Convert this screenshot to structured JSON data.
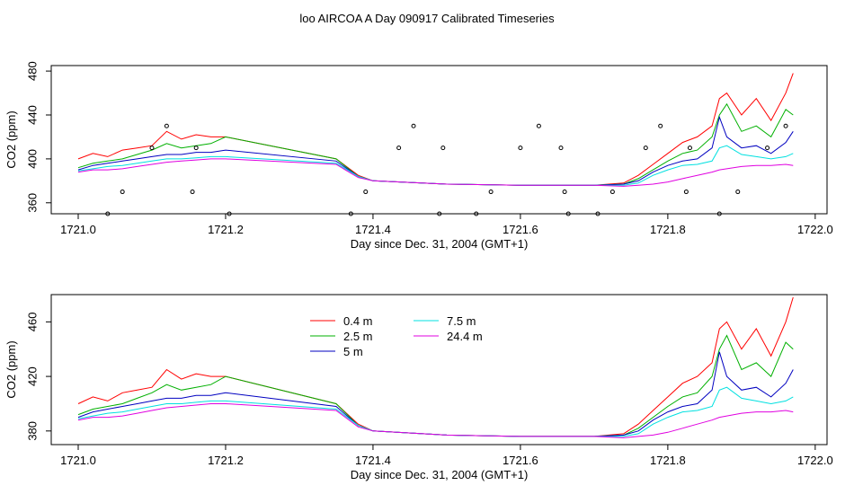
{
  "title": "loo AIRCOA A  Day 090917  Calibrated Timeseries",
  "colors": {
    "0.4 m": "#ff0000",
    "2.5 m": "#00b000",
    "5 m": "#0000c0",
    "7.5 m": "#00e0e0",
    "24.4 m": "#e000e0"
  },
  "chart_data": [
    {
      "type": "line",
      "title": "",
      "xlabel": "Day since Dec. 31, 2004 (GMT+1)",
      "ylabel": "CO2 (ppm)",
      "xlim": [
        1721.0,
        1722.0
      ],
      "ylim": [
        350,
        485
      ],
      "xticks": [
        "1721.0",
        "1721.2",
        "1721.4",
        "1721.6",
        "1721.8",
        "1722.0"
      ],
      "yticks": [
        "360",
        "400",
        "440",
        "480"
      ],
      "legend": false,
      "series": [
        {
          "name": "0.4 m",
          "x": [
            1721.0,
            1721.02,
            1721.04,
            1721.06,
            1721.08,
            1721.1,
            1721.12,
            1721.14,
            1721.16,
            1721.18,
            1721.2,
            1721.35,
            1721.38,
            1721.4,
            1721.5,
            1721.6,
            1721.7,
            1721.74,
            1721.76,
            1721.78,
            1721.8,
            1721.82,
            1721.84,
            1721.86,
            1721.87,
            1721.88,
            1721.9,
            1721.92,
            1721.94,
            1721.96,
            1721.97
          ],
          "y": [
            400,
            405,
            402,
            408,
            410,
            412,
            425,
            418,
            422,
            420,
            420,
            400,
            385,
            380,
            377,
            376,
            376,
            378,
            385,
            395,
            405,
            415,
            420,
            430,
            455,
            460,
            440,
            455,
            435,
            460,
            478
          ]
        },
        {
          "name": "2.5 m",
          "x": [
            1721.0,
            1721.02,
            1721.04,
            1721.06,
            1721.08,
            1721.1,
            1721.12,
            1721.14,
            1721.16,
            1721.18,
            1721.2,
            1721.35,
            1721.38,
            1721.4,
            1721.5,
            1721.6,
            1721.7,
            1721.74,
            1721.76,
            1721.78,
            1721.8,
            1721.82,
            1721.84,
            1721.86,
            1721.87,
            1721.88,
            1721.9,
            1721.92,
            1721.94,
            1721.96,
            1721.97
          ],
          "y": [
            392,
            396,
            398,
            400,
            404,
            408,
            414,
            410,
            412,
            414,
            420,
            400,
            384,
            380,
            377,
            376,
            376,
            377,
            382,
            390,
            398,
            405,
            408,
            420,
            440,
            450,
            425,
            430,
            420,
            445,
            440
          ]
        },
        {
          "name": "5 m",
          "x": [
            1721.0,
            1721.02,
            1721.04,
            1721.06,
            1721.08,
            1721.1,
            1721.12,
            1721.14,
            1721.16,
            1721.18,
            1721.2,
            1721.35,
            1721.38,
            1721.4,
            1721.5,
            1721.6,
            1721.7,
            1721.74,
            1721.76,
            1721.78,
            1721.8,
            1721.82,
            1721.84,
            1721.86,
            1721.87,
            1721.88,
            1721.9,
            1721.92,
            1721.94,
            1721.96,
            1721.97
          ],
          "y": [
            390,
            394,
            396,
            398,
            400,
            402,
            404,
            404,
            406,
            406,
            408,
            398,
            384,
            380,
            377,
            376,
            376,
            377,
            380,
            388,
            394,
            398,
            400,
            410,
            438,
            420,
            410,
            412,
            405,
            415,
            425
          ]
        },
        {
          "name": "7.5 m",
          "x": [
            1721.0,
            1721.02,
            1721.04,
            1721.06,
            1721.08,
            1721.1,
            1721.12,
            1721.14,
            1721.16,
            1721.18,
            1721.2,
            1721.35,
            1721.38,
            1721.4,
            1721.5,
            1721.6,
            1721.7,
            1721.74,
            1721.76,
            1721.78,
            1721.8,
            1721.82,
            1721.84,
            1721.86,
            1721.87,
            1721.88,
            1721.9,
            1721.92,
            1721.94,
            1721.96,
            1721.97
          ],
          "y": [
            389,
            391,
            393,
            394,
            396,
            398,
            400,
            400,
            401,
            402,
            402,
            396,
            384,
            380,
            377,
            376,
            376,
            376,
            378,
            385,
            390,
            394,
            395,
            398,
            410,
            412,
            404,
            402,
            400,
            402,
            405
          ]
        },
        {
          "name": "24.4 m",
          "x": [
            1721.0,
            1721.02,
            1721.04,
            1721.06,
            1721.08,
            1721.1,
            1721.12,
            1721.14,
            1721.16,
            1721.18,
            1721.2,
            1721.35,
            1721.38,
            1721.4,
            1721.5,
            1721.6,
            1721.7,
            1721.74,
            1721.76,
            1721.78,
            1721.8,
            1721.82,
            1721.84,
            1721.86,
            1721.87,
            1721.88,
            1721.9,
            1721.92,
            1721.94,
            1721.96,
            1721.97
          ],
          "y": [
            388,
            390,
            390,
            391,
            393,
            395,
            397,
            398,
            399,
            400,
            400,
            395,
            383,
            380,
            377,
            376,
            376,
            375,
            376,
            377,
            379,
            382,
            385,
            388,
            390,
            391,
            393,
            394,
            394,
            395,
            394
          ]
        }
      ],
      "markers": {
        "x": [
          1721.04,
          1721.06,
          1721.1,
          1721.12,
          1721.155,
          1721.16,
          1721.205,
          1721.37,
          1721.39,
          1721.435,
          1721.455,
          1721.49,
          1721.495,
          1721.54,
          1721.56,
          1721.6,
          1721.625,
          1721.655,
          1721.66,
          1721.665,
          1721.705,
          1721.725,
          1721.77,
          1721.79,
          1721.825,
          1721.83,
          1721.87,
          1721.895,
          1721.935,
          1721.96
        ],
        "y": [
          350,
          370,
          410,
          430,
          370,
          410,
          350,
          350,
          370,
          410,
          430,
          350,
          410,
          350,
          370,
          410,
          430,
          410,
          370,
          350,
          350,
          370,
          410,
          430,
          370,
          410,
          350,
          370,
          410,
          430
        ]
      }
    },
    {
      "type": "line",
      "title": "",
      "xlabel": "Day since Dec. 31, 2004 (GMT+1)",
      "ylabel": "CO2 (ppm)",
      "xlim": [
        1721.0,
        1722.0
      ],
      "ylim": [
        370,
        480
      ],
      "xticks": [
        "1721.0",
        "1721.2",
        "1721.4",
        "1721.6",
        "1721.8",
        "1722.0"
      ],
      "yticks": [
        "380",
        "420",
        "460"
      ],
      "legend": true,
      "legend_labels": [
        "0.4 m",
        "2.5 m",
        "5 m",
        "7.5 m",
        "24.4 m"
      ]
    }
  ]
}
